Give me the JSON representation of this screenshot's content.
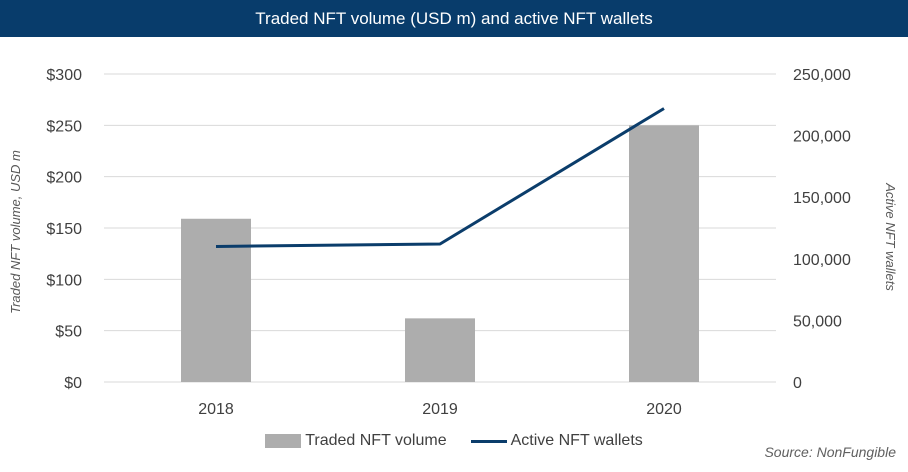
{
  "chart_data": {
    "type": "bar",
    "title": "Traded NFT volume (USD m) and active NFT wallets",
    "categories": [
      "2018",
      "2019",
      "2020"
    ],
    "series": [
      {
        "name": "Traded NFT volume",
        "type": "bar",
        "axis": "left",
        "values": [
          159,
          62,
          250
        ]
      },
      {
        "name": "Active NFT wallets",
        "type": "line",
        "axis": "right",
        "values": [
          110000,
          112000,
          222000
        ]
      }
    ],
    "ylabel": "Traded NFT volume, USD m",
    "ylabel_right": "Active NFT wallets",
    "ylim": [
      0,
      300
    ],
    "ylim_right": [
      0,
      250000
    ],
    "yticks": [
      "$0",
      "$50",
      "$100",
      "$150",
      "$200",
      "$250",
      "$300"
    ],
    "yticks_right": [
      "0",
      "50,000",
      "100,000",
      "150,000",
      "200,000",
      "250,000"
    ],
    "grid": true,
    "legend": "bottom",
    "source": "Source: NonFungible",
    "colors": {
      "bar": "#adadad",
      "line": "#0b3d6b",
      "title_bg": "#083c6b",
      "grid": "#d9d9d9"
    }
  }
}
